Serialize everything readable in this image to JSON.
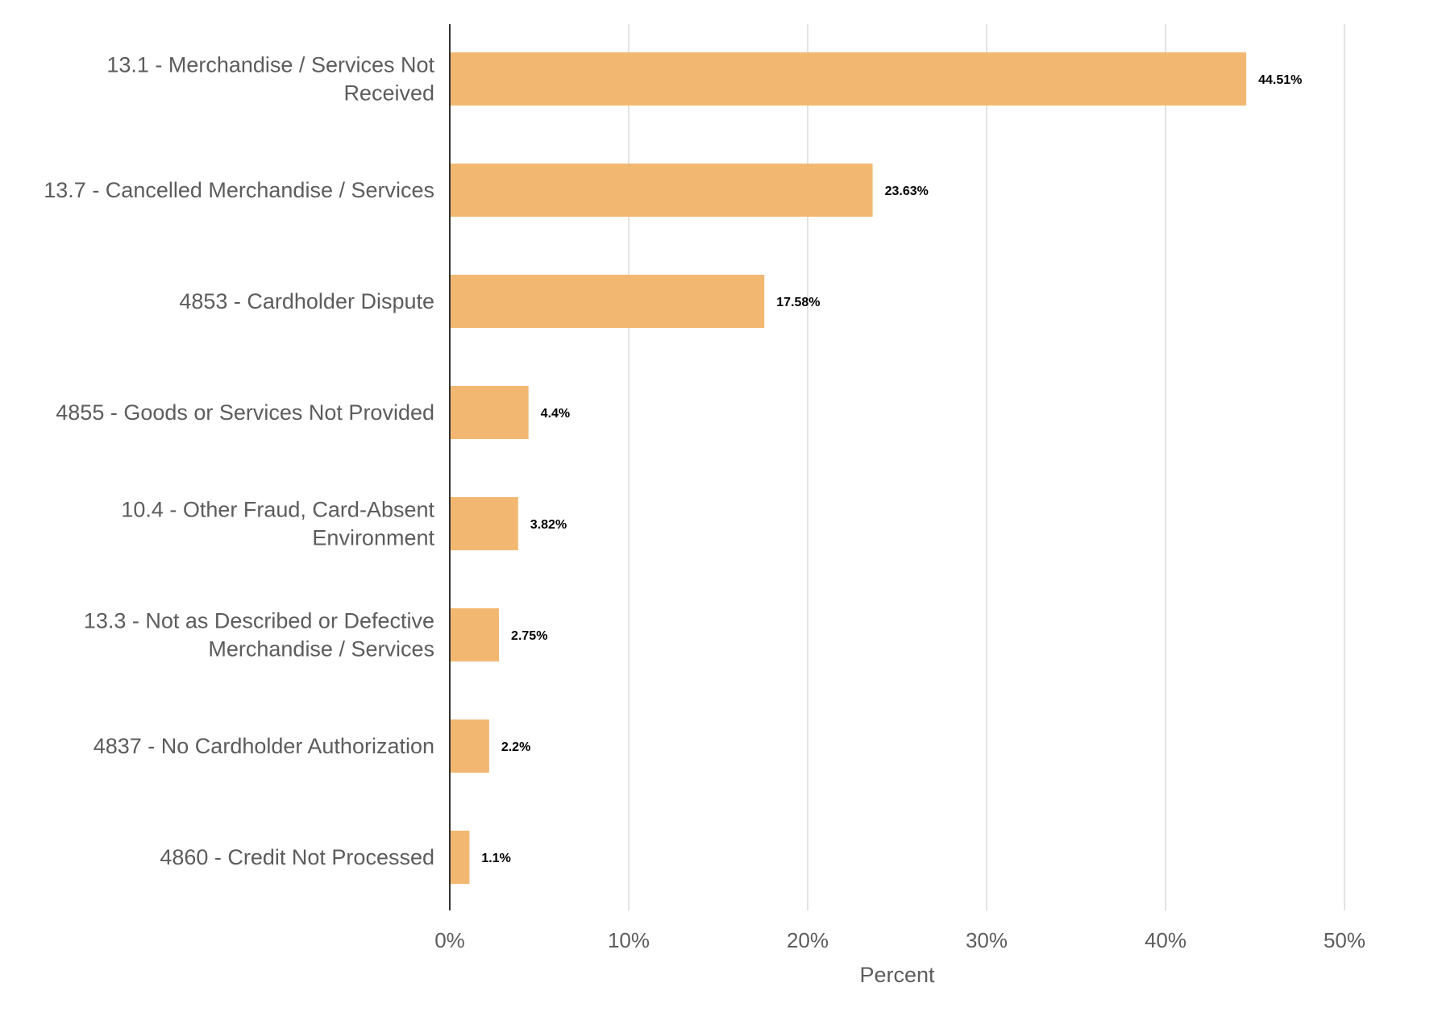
{
  "chart_data": {
    "type": "bar",
    "orientation": "horizontal",
    "categories": [
      "13.1 - Merchandise / Services Not Received",
      "13.7 - Cancelled Merchandise / Services",
      "4853 - Cardholder Dispute",
      "4855 - Goods or Services Not Provided",
      "10.4 - Other Fraud, Card-Absent Environment",
      "13.3 - Not as Described or Defective Merchandise / Services",
      "4837 - No Cardholder Authorization",
      "4860 - Credit Not Processed"
    ],
    "category_lines": [
      [
        "13.1 - Merchandise / Services Not",
        "Received"
      ],
      [
        "13.7 - Cancelled Merchandise / Services"
      ],
      [
        "4853 - Cardholder Dispute"
      ],
      [
        "4855 - Goods or Services Not Provided"
      ],
      [
        "10.4 - Other Fraud, Card-Absent",
        "Environment"
      ],
      [
        "13.3 - Not as Described or Defective",
        "Merchandise / Services"
      ],
      [
        "4837 - No Cardholder Authorization"
      ],
      [
        "4860 - Credit Not Processed"
      ]
    ],
    "values": [
      44.51,
      23.63,
      17.58,
      4.4,
      3.82,
      2.75,
      2.2,
      1.1
    ],
    "value_labels": [
      "44.51%",
      "23.63%",
      "17.58%",
      "4.4%",
      "3.82%",
      "2.75%",
      "2.2%",
      "1.1%"
    ],
    "xlabel": "Percent",
    "ylabel": "",
    "xlim": [
      0,
      50
    ],
    "ticks": [
      0,
      10,
      20,
      30,
      40,
      50
    ],
    "tick_labels": [
      "0%",
      "10%",
      "20%",
      "30%",
      "40%",
      "50%"
    ],
    "grid": true,
    "bar_color": "#f2b872",
    "axis_color": "#333333",
    "grid_color": "#e3e3e3",
    "text_color": "#5c5c5c"
  }
}
